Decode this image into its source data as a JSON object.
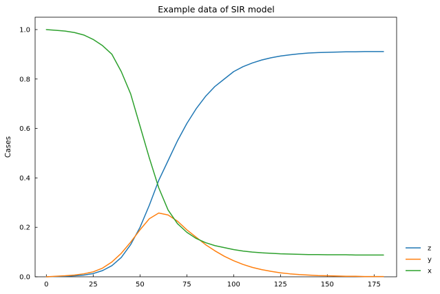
{
  "chart_data": {
    "type": "line",
    "title": "Example data of SIR model",
    "xlabel": "",
    "ylabel": "Cases",
    "xlim": [
      -6,
      187
    ],
    "ylim": [
      0,
      1.05
    ],
    "xticks": [
      0,
      25,
      50,
      75,
      100,
      125,
      150,
      175
    ],
    "yticks": [
      0.0,
      0.2,
      0.4,
      0.6,
      0.8,
      1.0
    ],
    "xtick_labels": [
      "0",
      "25",
      "50",
      "75",
      "100",
      "125",
      "150",
      "175"
    ],
    "ytick_labels": [
      "0.0",
      "0.2",
      "0.4",
      "0.6",
      "0.8",
      "1.0"
    ],
    "grid": false,
    "legend_position": "outside-bottom-right",
    "x": [
      0,
      5,
      10,
      15,
      20,
      25,
      30,
      35,
      40,
      45,
      50,
      55,
      60,
      65,
      70,
      75,
      80,
      85,
      90,
      95,
      100,
      105,
      110,
      115,
      120,
      125,
      130,
      135,
      140,
      145,
      150,
      155,
      160,
      165,
      170,
      175,
      180
    ],
    "series": [
      {
        "name": "z",
        "color": "#1f77b4",
        "values": [
          0.0,
          0.001,
          0.002,
          0.004,
          0.007,
          0.013,
          0.025,
          0.045,
          0.078,
          0.13,
          0.2,
          0.29,
          0.39,
          0.47,
          0.55,
          0.62,
          0.68,
          0.73,
          0.77,
          0.8,
          0.83,
          0.85,
          0.865,
          0.877,
          0.886,
          0.893,
          0.898,
          0.902,
          0.905,
          0.907,
          0.908,
          0.909,
          0.91,
          0.91,
          0.911,
          0.911,
          0.911
        ]
      },
      {
        "name": "y",
        "color": "#ff7f0e",
        "values": [
          0.0,
          0.002,
          0.004,
          0.007,
          0.012,
          0.02,
          0.035,
          0.06,
          0.095,
          0.14,
          0.19,
          0.235,
          0.258,
          0.25,
          0.225,
          0.19,
          0.16,
          0.13,
          0.105,
          0.083,
          0.065,
          0.05,
          0.038,
          0.029,
          0.022,
          0.016,
          0.012,
          0.009,
          0.007,
          0.005,
          0.004,
          0.003,
          0.002,
          0.002,
          0.001,
          0.001,
          0.001
        ]
      },
      {
        "name": "x",
        "color": "#2ca02c",
        "values": [
          1.0,
          0.997,
          0.994,
          0.988,
          0.978,
          0.96,
          0.935,
          0.9,
          0.83,
          0.74,
          0.61,
          0.48,
          0.36,
          0.27,
          0.215,
          0.18,
          0.155,
          0.138,
          0.126,
          0.118,
          0.11,
          0.104,
          0.1,
          0.097,
          0.095,
          0.093,
          0.092,
          0.091,
          0.09,
          0.09,
          0.089,
          0.089,
          0.089,
          0.088,
          0.088,
          0.088,
          0.088
        ]
      }
    ]
  }
}
